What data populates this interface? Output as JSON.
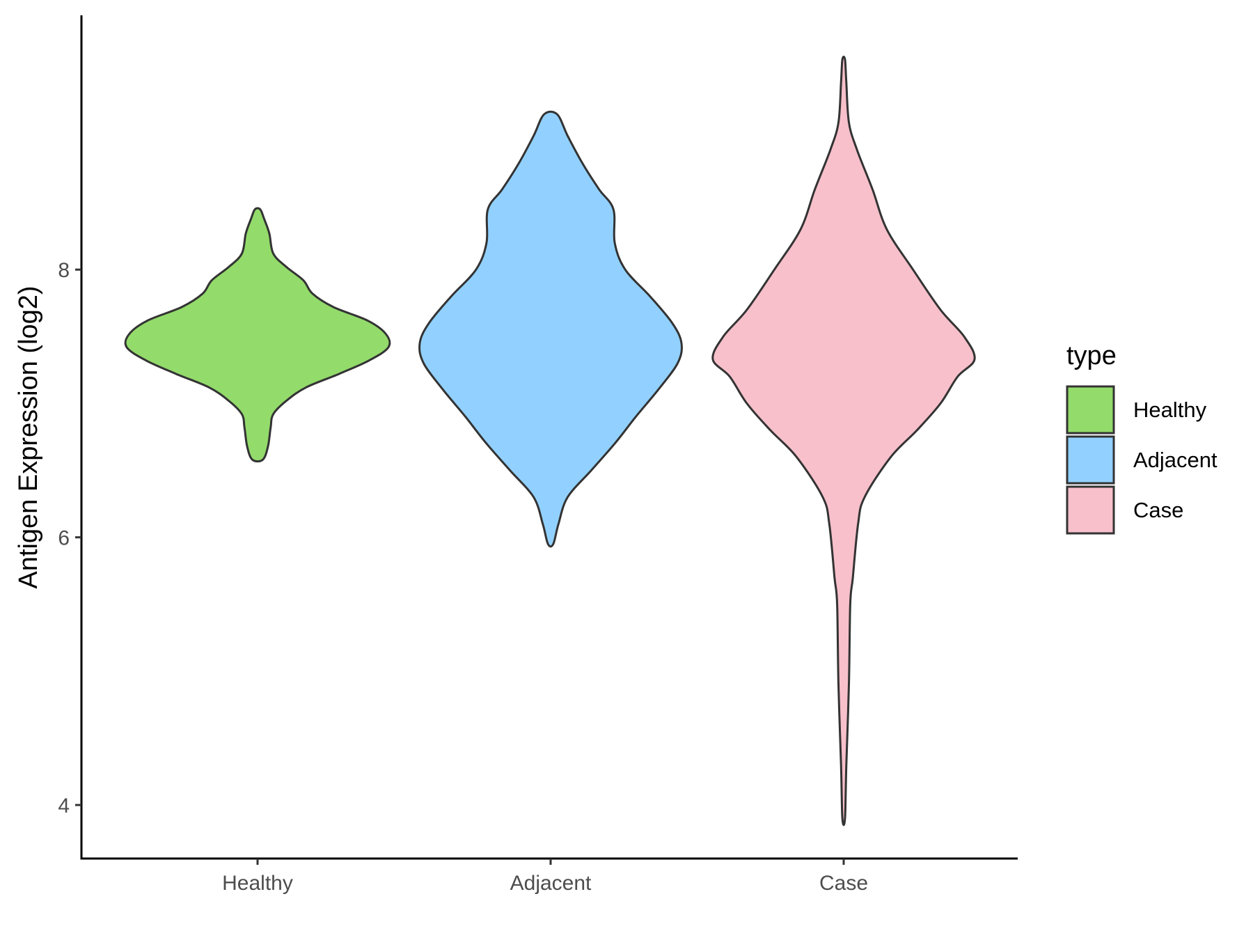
{
  "chart_data": {
    "type": "violin",
    "title": "",
    "xlabel": "",
    "ylabel": "Antigen Expression (log2)",
    "categories": [
      "Healthy",
      "Adjacent",
      "Case"
    ],
    "ylim": [
      3.6,
      9.9
    ],
    "y_ticks": [
      4,
      6,
      8
    ],
    "y_tick_labels": [
      "4",
      "6",
      "8"
    ],
    "grid": false,
    "legend": {
      "title": "type",
      "placement": "right",
      "entries": [
        {
          "label": "Healthy",
          "color": "#93DB6B"
        },
        {
          "label": "Adjacent",
          "color": "#92D1FF"
        },
        {
          "label": "Case",
          "color": "#F7C0CB"
        }
      ]
    },
    "series": [
      {
        "category": "Healthy",
        "color": "#93DB6B",
        "range": [
          6.58,
          8.45
        ],
        "density_profile": [
          [
            6.58,
            0.04
          ],
          [
            6.68,
            0.08
          ],
          [
            6.82,
            0.1
          ],
          [
            6.92,
            0.12
          ],
          [
            7.02,
            0.22
          ],
          [
            7.12,
            0.37
          ],
          [
            7.22,
            0.62
          ],
          [
            7.32,
            0.85
          ],
          [
            7.42,
            1.0
          ],
          [
            7.52,
            0.98
          ],
          [
            7.62,
            0.84
          ],
          [
            7.72,
            0.58
          ],
          [
            7.82,
            0.42
          ],
          [
            7.92,
            0.35
          ],
          [
            8.02,
            0.22
          ],
          [
            8.12,
            0.12
          ],
          [
            8.27,
            0.09
          ],
          [
            8.38,
            0.05
          ],
          [
            8.45,
            0.02
          ]
        ]
      },
      {
        "category": "Adjacent",
        "color": "#92D1FF",
        "range": [
          5.95,
          9.16
        ],
        "density_profile": [
          [
            5.95,
            0.02
          ],
          [
            6.1,
            0.06
          ],
          [
            6.3,
            0.13
          ],
          [
            6.5,
            0.31
          ],
          [
            6.7,
            0.49
          ],
          [
            6.9,
            0.65
          ],
          [
            7.1,
            0.82
          ],
          [
            7.3,
            0.97
          ],
          [
            7.45,
            1.0
          ],
          [
            7.6,
            0.93
          ],
          [
            7.8,
            0.76
          ],
          [
            8.0,
            0.57
          ],
          [
            8.2,
            0.49
          ],
          [
            8.45,
            0.48
          ],
          [
            8.6,
            0.37
          ],
          [
            8.8,
            0.24
          ],
          [
            9.0,
            0.13
          ],
          [
            9.16,
            0.05
          ]
        ]
      },
      {
        "category": "Case",
        "color": "#F7C0CB",
        "range": [
          3.9,
          9.57
        ],
        "density_profile": [
          [
            3.9,
            0.01
          ],
          [
            4.3,
            0.02
          ],
          [
            4.9,
            0.04
          ],
          [
            5.5,
            0.05
          ],
          [
            5.7,
            0.07
          ],
          [
            6.1,
            0.11
          ],
          [
            6.3,
            0.16
          ],
          [
            6.6,
            0.36
          ],
          [
            6.8,
            0.56
          ],
          [
            7.0,
            0.74
          ],
          [
            7.2,
            0.87
          ],
          [
            7.33,
            1.0
          ],
          [
            7.5,
            0.92
          ],
          [
            7.7,
            0.74
          ],
          [
            8.0,
            0.53
          ],
          [
            8.3,
            0.33
          ],
          [
            8.6,
            0.22
          ],
          [
            8.9,
            0.1
          ],
          [
            9.1,
            0.04
          ],
          [
            9.4,
            0.02
          ],
          [
            9.57,
            0.01
          ]
        ]
      }
    ]
  }
}
